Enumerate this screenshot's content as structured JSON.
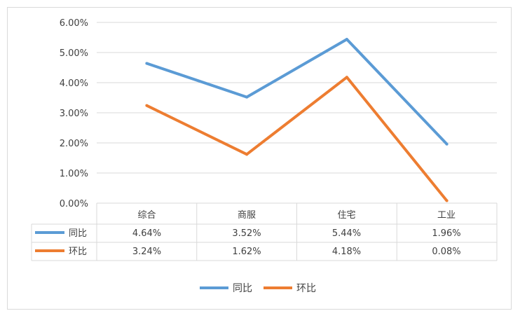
{
  "chart_data": {
    "type": "line",
    "categories": [
      "综合",
      "商服",
      "住宅",
      "工业"
    ],
    "series": [
      {
        "name": "同比",
        "values": [
          4.64,
          3.52,
          5.44,
          1.96
        ],
        "labels": [
          "4.64%",
          "3.52%",
          "5.44%",
          "1.96%"
        ],
        "color": "#5b9bd5"
      },
      {
        "name": "环比",
        "values": [
          3.24,
          1.62,
          4.18,
          0.08
        ],
        "labels": [
          "3.24%",
          "1.62%",
          "4.18%",
          "0.08%"
        ],
        "color": "#ed7d31"
      }
    ],
    "y_ticks": [
      "6.00%",
      "5.00%",
      "4.00%",
      "3.00%",
      "2.00%",
      "1.00%",
      "0.00%"
    ],
    "ylim": [
      0,
      6
    ],
    "grid": true,
    "data_table": true,
    "legend_position": "bottom"
  }
}
